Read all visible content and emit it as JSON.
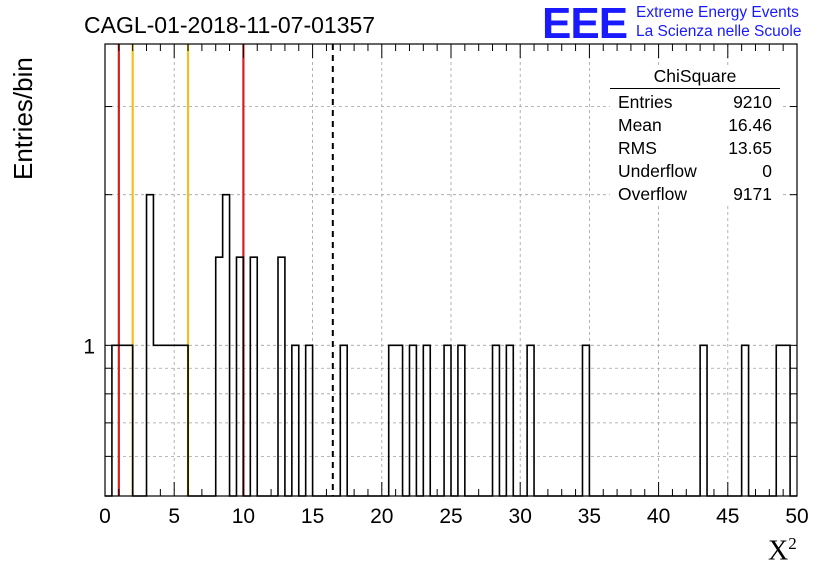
{
  "header": {
    "title": "CAGL-01-2018-11-07-01357"
  },
  "logo": {
    "mark": "EEE",
    "line1": "Extreme Energy Events",
    "line2": "La Scienza nelle Scuole",
    "color": "#1a1aff"
  },
  "stats": {
    "name": "ChiSquare",
    "rows": [
      {
        "label": "Entries",
        "value": "9210"
      },
      {
        "label": "Mean",
        "value": "16.46"
      },
      {
        "label": "RMS",
        "value": "13.65"
      },
      {
        "label": "Underflow",
        "value": "0"
      },
      {
        "label": "Overflow",
        "value": "9171"
      }
    ]
  },
  "chart_data": {
    "type": "bar",
    "title": "CAGL-01-2018-11-07-01357",
    "xlabel": "X",
    "xlabel_sup": "2",
    "ylabel": "Entries/bin",
    "xlim": [
      0,
      50
    ],
    "ylim": [
      0.5,
      4
    ],
    "yscale": "log",
    "grid": true,
    "x_ticks": [
      0,
      5,
      10,
      15,
      20,
      25,
      30,
      35,
      40,
      45,
      50
    ],
    "y_tick_labels": [
      {
        "value": 1,
        "label": "1"
      }
    ],
    "bin_width": 0.5,
    "bins": [
      {
        "x": 0.0,
        "y": 0
      },
      {
        "x": 0.5,
        "y": 1
      },
      {
        "x": 1.0,
        "y": 1
      },
      {
        "x": 1.5,
        "y": 1
      },
      {
        "x": 2.0,
        "y": 0
      },
      {
        "x": 2.5,
        "y": 0
      },
      {
        "x": 3.0,
        "y": 2
      },
      {
        "x": 3.5,
        "y": 1
      },
      {
        "x": 4.0,
        "y": 1
      },
      {
        "x": 4.5,
        "y": 1
      },
      {
        "x": 5.0,
        "y": 1
      },
      {
        "x": 5.5,
        "y": 1
      },
      {
        "x": 8.0,
        "y": 1.5
      },
      {
        "x": 8.5,
        "y": 2
      },
      {
        "x": 9.5,
        "y": 1.5
      },
      {
        "x": 10.5,
        "y": 1.5
      },
      {
        "x": 12.5,
        "y": 1.5
      },
      {
        "x": 13.5,
        "y": 1
      },
      {
        "x": 14.5,
        "y": 1
      },
      {
        "x": 17.0,
        "y": 1
      },
      {
        "x": 20.5,
        "y": 1
      },
      {
        "x": 21.0,
        "y": 1
      },
      {
        "x": 22.0,
        "y": 1
      },
      {
        "x": 23.0,
        "y": 1
      },
      {
        "x": 24.5,
        "y": 1
      },
      {
        "x": 25.5,
        "y": 1
      },
      {
        "x": 28.0,
        "y": 1
      },
      {
        "x": 29.0,
        "y": 1
      },
      {
        "x": 30.5,
        "y": 1
      },
      {
        "x": 34.5,
        "y": 1
      },
      {
        "x": 43.0,
        "y": 1
      },
      {
        "x": 46.0,
        "y": 1
      },
      {
        "x": 48.5,
        "y": 1
      },
      {
        "x": 49.0,
        "y": 1
      }
    ],
    "vlines": [
      {
        "x": 1.0,
        "color": "#d42020",
        "style": "solid"
      },
      {
        "x": 2.0,
        "color": "#f0c020",
        "style": "solid"
      },
      {
        "x": 6.0,
        "color": "#f0c020",
        "style": "solid"
      },
      {
        "x": 10.0,
        "color": "#d42020",
        "style": "solid"
      },
      {
        "x": 16.46,
        "color": "#000000",
        "style": "dashed"
      }
    ]
  }
}
